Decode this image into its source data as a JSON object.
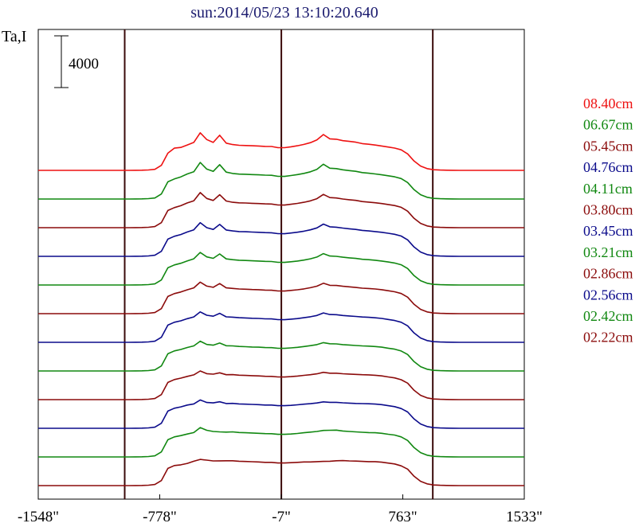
{
  "chart_data": {
    "type": "line",
    "title": "sun:2014/05/23 13:10:20.640",
    "ylabel": "Ta,I",
    "xlabel": "",
    "scale_bar_label": "4000",
    "x_ticks": [
      "-1548\"",
      "-778\"",
      "-7\"",
      "763\"",
      "1533\""
    ],
    "x_tick_values": [
      -1548,
      -778,
      -7,
      763,
      1533
    ],
    "xlim": [
      -1548,
      1533
    ],
    "vertical_lines": [
      -1000,
      -7,
      953
    ],
    "series_offset": 4000,
    "colors": {
      "red": "#ee1111",
      "green": "#118811",
      "darkred": "#8b0b0b",
      "blue": "#0b0b8b"
    },
    "series": [
      {
        "name": "",
        "color": "#8b0b0b",
        "y_values": [
          -5,
          -3,
          -2,
          -1,
          0,
          4,
          1,
          -2,
          0,
          1,
          0,
          0,
          1,
          2,
          4,
          8,
          22,
          60,
          150,
          700,
          2400,
          2800,
          2900,
          3100,
          3400,
          3650,
          3550,
          3450,
          3460,
          3470,
          3470,
          3400,
          3370,
          3330,
          3300,
          3250,
          3240,
          3160,
          3150,
          3200,
          3250,
          3300,
          3300,
          3350,
          3380,
          3400,
          3470,
          3490,
          3450,
          3420,
          3380,
          3340,
          3350,
          3270,
          3140,
          3020,
          2760,
          2300,
          1300,
          600,
          250,
          90,
          40,
          20,
          10,
          4,
          2,
          -1,
          0,
          1,
          1,
          0,
          0,
          -1,
          1,
          0
        ]
      },
      {
        "name": "",
        "color": "#118811",
        "y_values": [
          -5,
          -3,
          -2,
          -1,
          0,
          4,
          1,
          -2,
          0,
          1,
          0,
          0,
          1,
          2,
          4,
          8,
          22,
          60,
          150,
          700,
          2400,
          2800,
          2980,
          3200,
          3400,
          4100,
          3720,
          3550,
          3500,
          3470,
          3500,
          3410,
          3380,
          3340,
          3300,
          3260,
          3240,
          3150,
          3150,
          3200,
          3280,
          3380,
          3470,
          3550,
          3700,
          3720,
          3750,
          3620,
          3550,
          3500,
          3440,
          3400,
          3380,
          3300,
          3170,
          3050,
          2800,
          2300,
          1300,
          600,
          250,
          90,
          40,
          20,
          10,
          4,
          2,
          -1,
          0,
          1,
          1,
          0,
          0,
          -1,
          1,
          0
        ]
      },
      {
        "name": "",
        "color": "#0b0b8b",
        "y_values": [
          -5,
          -3,
          -2,
          -1,
          0,
          4,
          1,
          -2,
          0,
          1,
          0,
          0,
          1,
          2,
          4,
          8,
          22,
          60,
          150,
          700,
          2400,
          2800,
          2990,
          3250,
          3400,
          3950,
          3600,
          3540,
          3700,
          3460,
          3480,
          3400,
          3370,
          3330,
          3300,
          3250,
          3240,
          3160,
          3150,
          3200,
          3280,
          3370,
          3430,
          3530,
          3690,
          3620,
          3620,
          3560,
          3510,
          3470,
          3440,
          3420,
          3380,
          3300,
          3150,
          3020,
          2760,
          2280,
          1300,
          600,
          250,
          90,
          40,
          20,
          10,
          4,
          2,
          -1,
          0,
          1,
          1,
          0,
          0,
          -1,
          1,
          0
        ]
      },
      {
        "name": "",
        "color": "#8b0b0b",
        "y_values": [
          -5,
          -3,
          -2,
          -1,
          0,
          4,
          1,
          -2,
          0,
          1,
          0,
          0,
          1,
          2,
          4,
          8,
          22,
          60,
          150,
          700,
          2400,
          2800,
          3000,
          3250,
          3450,
          4000,
          3620,
          3560,
          3740,
          3480,
          3490,
          3410,
          3380,
          3340,
          3310,
          3260,
          3250,
          3170,
          3160,
          3210,
          3290,
          3390,
          3480,
          3600,
          3810,
          3690,
          3690,
          3610,
          3570,
          3520,
          3480,
          3450,
          3400,
          3310,
          3170,
          3030,
          2780,
          2300,
          1300,
          600,
          250,
          90,
          40,
          20,
          10,
          4,
          2,
          -1,
          0,
          1,
          1,
          0,
          0,
          -1,
          1,
          0
        ]
      },
      {
        "name": "",
        "color": "#118811",
        "y_values": [
          -5,
          -3,
          -2,
          -1,
          0,
          4,
          1,
          -2,
          0,
          1,
          0,
          0,
          1,
          2,
          4,
          8,
          22,
          60,
          150,
          700,
          2400,
          2800,
          3000,
          3280,
          3500,
          4150,
          3700,
          3600,
          3900,
          3520,
          3500,
          3420,
          3390,
          3350,
          3320,
          3270,
          3260,
          3170,
          3160,
          3220,
          3300,
          3410,
          3530,
          3680,
          3950,
          3800,
          3780,
          3680,
          3620,
          3560,
          3500,
          3470,
          3410,
          3320,
          3180,
          3040,
          2790,
          2300,
          1300,
          600,
          250,
          90,
          40,
          20,
          10,
          4,
          2,
          -1,
          0,
          1,
          1,
          0,
          0,
          -1,
          1,
          0
        ]
      },
      {
        "name": "",
        "color": "#0b0b8b",
        "y_values": [
          -5,
          -3,
          -2,
          -1,
          0,
          4,
          1,
          -2,
          0,
          1,
          0,
          0,
          1,
          2,
          4,
          8,
          22,
          60,
          150,
          700,
          2400,
          2800,
          3000,
          3300,
          3550,
          4250,
          3780,
          3640,
          4050,
          3560,
          3510,
          3430,
          3400,
          3360,
          3330,
          3280,
          3270,
          3170,
          3160,
          3230,
          3310,
          3430,
          3570,
          3750,
          4100,
          3880,
          3860,
          3750,
          3680,
          3610,
          3530,
          3490,
          3420,
          3330,
          3190,
          3050,
          2800,
          2300,
          1300,
          600,
          250,
          90,
          40,
          20,
          10,
          4,
          2,
          -1,
          0,
          1,
          1,
          0,
          0,
          -1,
          1,
          0
        ]
      },
      {
        "name": "",
        "color": "#8b0b0b",
        "y_values": [
          -5,
          -3,
          -2,
          -1,
          0,
          4,
          1,
          -2,
          0,
          1,
          0,
          0,
          1,
          2,
          4,
          8,
          22,
          60,
          150,
          700,
          2400,
          2800,
          3020,
          3330,
          3600,
          4400,
          3850,
          3680,
          4200,
          3600,
          3520,
          3440,
          3410,
          3370,
          3340,
          3290,
          3270,
          3170,
          3160,
          3240,
          3330,
          3460,
          3620,
          3830,
          4250,
          3960,
          3930,
          3820,
          3740,
          3660,
          3560,
          3510,
          3440,
          3340,
          3200,
          3060,
          2810,
          2300,
          1300,
          600,
          250,
          90,
          40,
          20,
          10,
          4,
          2,
          -1,
          0,
          1,
          1,
          0,
          0,
          -1,
          1,
          0
        ]
      },
      {
        "name": "",
        "color": "#118811",
        "y_values": [
          -5,
          -3,
          -2,
          -1,
          0,
          4,
          1,
          -2,
          0,
          1,
          0,
          0,
          1,
          2,
          4,
          8,
          22,
          60,
          150,
          700,
          2400,
          2800,
          3030,
          3360,
          3650,
          4550,
          3920,
          3720,
          4330,
          3640,
          3530,
          3450,
          3420,
          3380,
          3350,
          3300,
          3280,
          3170,
          3160,
          3250,
          3350,
          3480,
          3660,
          3900,
          4380,
          4040,
          4000,
          3880,
          3790,
          3710,
          3590,
          3530,
          3450,
          3350,
          3210,
          3070,
          2820,
          2300,
          1300,
          600,
          250,
          90,
          40,
          20,
          10,
          4,
          2,
          -1,
          0,
          1,
          1,
          0,
          0,
          -1,
          1,
          0
        ]
      },
      {
        "name": "",
        "color": "#0b0b8b",
        "y_values": [
          -5,
          -3,
          -2,
          -1,
          0,
          4,
          1,
          -2,
          0,
          1,
          0,
          0,
          1,
          2,
          4,
          8,
          22,
          60,
          150,
          700,
          2400,
          2800,
          3050,
          3400,
          3700,
          4700,
          4000,
          3760,
          4450,
          3680,
          3540,
          3460,
          3430,
          3390,
          3360,
          3310,
          3290,
          3170,
          3160,
          3260,
          3370,
          3510,
          3700,
          3970,
          4500,
          4120,
          4070,
          3940,
          3840,
          3760,
          3620,
          3550,
          3460,
          3360,
          3220,
          3080,
          2830,
          2300,
          1300,
          600,
          250,
          90,
          40,
          20,
          10,
          4,
          2,
          -1,
          0,
          1,
          1,
          0,
          0,
          -1,
          1,
          0
        ]
      },
      {
        "name": "",
        "color": "#8b0b0b",
        "y_values": [
          -5,
          -3,
          -2,
          -1,
          0,
          4,
          1,
          -2,
          0,
          1,
          0,
          0,
          1,
          2,
          4,
          8,
          22,
          60,
          150,
          700,
          2400,
          2800,
          3070,
          3450,
          3750,
          4900,
          4080,
          3800,
          4600,
          3720,
          3550,
          3470,
          3440,
          3400,
          3370,
          3320,
          3300,
          3170,
          3160,
          3270,
          3390,
          3540,
          3750,
          4050,
          4650,
          4200,
          4150,
          4000,
          3900,
          3810,
          3650,
          3570,
          3480,
          3370,
          3230,
          3090,
          2840,
          2300,
          1300,
          600,
          250,
          90,
          40,
          20,
          10,
          4,
          2,
          -1,
          0,
          1,
          1,
          0,
          0,
          -1,
          1,
          0
        ]
      },
      {
        "name": "",
        "color": "#118811",
        "y_values": [
          -5,
          -3,
          -2,
          -1,
          0,
          4,
          1,
          -2,
          0,
          1,
          0,
          0,
          1,
          2,
          4,
          8,
          22,
          60,
          150,
          700,
          2400,
          2800,
          3090,
          3500,
          3800,
          5100,
          4180,
          3850,
          4800,
          3760,
          3570,
          3480,
          3450,
          3410,
          3380,
          3330,
          3310,
          3170,
          3160,
          3280,
          3410,
          3580,
          3800,
          4150,
          4850,
          4300,
          4250,
          4080,
          3970,
          3870,
          3690,
          3600,
          3500,
          3380,
          3240,
          3100,
          2850,
          2300,
          1300,
          600,
          250,
          90,
          40,
          20,
          10,
          4,
          2,
          -1,
          0,
          1,
          1,
          0,
          0,
          -1,
          1,
          0
        ]
      },
      {
        "name": "",
        "color": "#ee1111",
        "y_values": [
          -5,
          -3,
          -2,
          -1,
          0,
          4,
          1,
          -2,
          0,
          1,
          0,
          0,
          1,
          2,
          4,
          8,
          22,
          60,
          150,
          700,
          2400,
          3100,
          3200,
          3550,
          3900,
          5250,
          4300,
          3900,
          4900,
          3800,
          3600,
          3500,
          3470,
          3430,
          3400,
          3350,
          3330,
          3170,
          3170,
          3290,
          3430,
          3620,
          3870,
          4250,
          5000,
          4400,
          4350,
          4150,
          4050,
          3930,
          3730,
          3640,
          3530,
          3400,
          3260,
          3110,
          2870,
          2300,
          1300,
          600,
          250,
          90,
          40,
          20,
          10,
          4,
          2,
          -1,
          0,
          1,
          1,
          0,
          0,
          -1,
          1,
          0
        ]
      }
    ],
    "legend": [
      {
        "label": "08.40cm",
        "color": "#ee1111"
      },
      {
        "label": "06.67cm",
        "color": "#118811"
      },
      {
        "label": "05.45cm",
        "color": "#8b0b0b"
      },
      {
        "label": "04.76cm",
        "color": "#0b0b8b"
      },
      {
        "label": "04.11cm",
        "color": "#118811"
      },
      {
        "label": "03.80cm",
        "color": "#8b0b0b"
      },
      {
        "label": "03.45cm",
        "color": "#0b0b8b"
      },
      {
        "label": "03.21cm",
        "color": "#118811"
      },
      {
        "label": "02.86cm",
        "color": "#8b0b0b"
      },
      {
        "label": "02.56cm",
        "color": "#0b0b8b"
      },
      {
        "label": "02.42cm",
        "color": "#118811"
      },
      {
        "label": "02.22cm",
        "color": "#8b0b0b"
      }
    ],
    "legend_placement": "right",
    "grid": false
  }
}
